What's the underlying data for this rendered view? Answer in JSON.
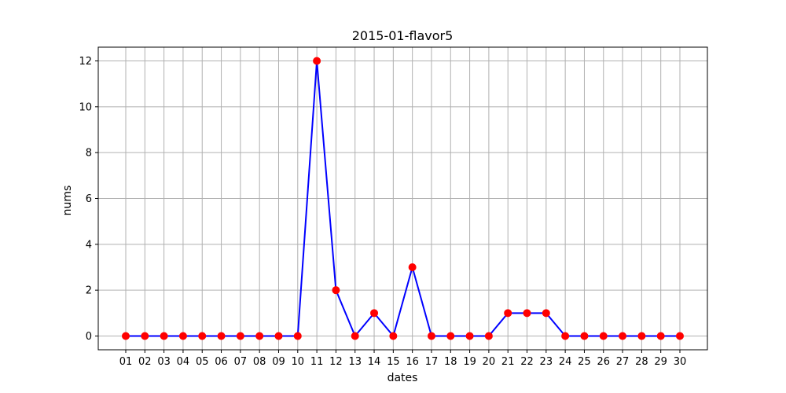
{
  "chart_data": {
    "type": "line",
    "title": "2015-01-flavor5",
    "xlabel": "dates",
    "ylabel": "nums",
    "categories": [
      "01",
      "02",
      "03",
      "04",
      "05",
      "06",
      "07",
      "08",
      "09",
      "10",
      "11",
      "12",
      "13",
      "14",
      "15",
      "16",
      "17",
      "18",
      "19",
      "20",
      "21",
      "22",
      "23",
      "24",
      "25",
      "26",
      "27",
      "28",
      "29",
      "30"
    ],
    "series": [
      {
        "values": [
          0,
          0,
          0,
          0,
          0,
          0,
          0,
          0,
          0,
          0,
          12,
          2,
          0,
          1,
          0,
          3,
          0,
          0,
          0,
          0,
          1,
          1,
          1,
          0,
          0,
          0,
          0,
          0,
          0,
          0
        ]
      }
    ],
    "yticks": [
      0,
      2,
      4,
      6,
      8,
      10,
      12
    ],
    "ylim": [
      -0.6,
      12.6
    ],
    "grid": true,
    "line_color": "#0000ff",
    "marker_color": "#ff0000"
  }
}
